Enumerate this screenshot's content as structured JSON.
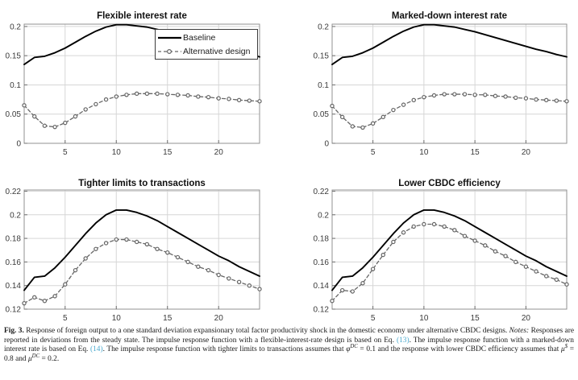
{
  "figure": {
    "caption": {
      "link_color": "#4aa9ce",
      "segments": [
        {
          "text": "Fig. 3.",
          "bold": true
        },
        {
          "text": " Response of foreign output to a one standard deviation expansionary total factor productivity shock in the domestic economy under alternative CBDC designs. "
        },
        {
          "text": "Notes:",
          "italic": true
        },
        {
          "text": " Responses are reported in deviations from the steady state. The impulse response function with a flexible-interest-rate design is based on Eq. "
        },
        {
          "text": "(13)",
          "link": true,
          "name": "eq-13-link"
        },
        {
          "text": ". The impulse response function with a marked-down interest rate is based on Eq. "
        },
        {
          "text": "(14)",
          "link": true,
          "name": "eq-14-link"
        },
        {
          "text": ". The impulse response function with tighter limits to transactions assumes that "
        },
        {
          "text": "φ",
          "italic": true
        },
        {
          "text": "DC",
          "italic": true,
          "sup": true
        },
        {
          "text": " = 0.1 and the response with lower CBDC efficiency assumes that "
        },
        {
          "text": "μ",
          "italic": true
        },
        {
          "text": "$",
          "italic": true,
          "sup": true
        },
        {
          "text": " = 0.8 and "
        },
        {
          "text": "μ",
          "italic": true
        },
        {
          "text": "DC",
          "italic": true,
          "sup": true
        },
        {
          "text": " = 0.2."
        }
      ]
    }
  },
  "chart_data": [
    {
      "type": "line",
      "title": "Flexible interest rate",
      "xlabel": "",
      "ylabel": "",
      "x": [
        1,
        2,
        3,
        4,
        5,
        6,
        7,
        8,
        9,
        10,
        11,
        12,
        13,
        14,
        15,
        16,
        17,
        18,
        19,
        20,
        21,
        22,
        23,
        24
      ],
      "xlim": [
        1,
        24
      ],
      "ylim": [
        0,
        0.204
      ],
      "xticks": [
        5,
        10,
        15,
        20
      ],
      "yticks": [
        0,
        0.05,
        0.1,
        0.15,
        0.2
      ],
      "ytick_labels": [
        "0",
        "0.05",
        "0.1",
        "0.15",
        "0.2"
      ],
      "grid": true,
      "legend_position": "northeast",
      "series": [
        {
          "name": "Baseline",
          "line": "solid",
          "marker": "none",
          "color": "#000000",
          "width": 1.9,
          "values": [
            0.135,
            0.147,
            0.149,
            0.155,
            0.163,
            0.173,
            0.183,
            0.192,
            0.199,
            0.203,
            0.203,
            0.201,
            0.199,
            0.195,
            0.191,
            0.186,
            0.181,
            0.176,
            0.171,
            0.166,
            0.161,
            0.157,
            0.152,
            0.148
          ]
        },
        {
          "name": "Alternative design",
          "line": "dashed",
          "marker": "circle",
          "color": "#666666",
          "width": 1.3,
          "values": [
            0.065,
            0.046,
            0.03,
            0.028,
            0.035,
            0.046,
            0.058,
            0.067,
            0.075,
            0.08,
            0.083,
            0.085,
            0.085,
            0.085,
            0.084,
            0.083,
            0.082,
            0.08,
            0.079,
            0.077,
            0.076,
            0.074,
            0.073,
            0.072
          ]
        }
      ]
    },
    {
      "type": "line",
      "title": "Marked-down interest rate",
      "xlabel": "",
      "ylabel": "",
      "x": [
        1,
        2,
        3,
        4,
        5,
        6,
        7,
        8,
        9,
        10,
        11,
        12,
        13,
        14,
        15,
        16,
        17,
        18,
        19,
        20,
        21,
        22,
        23,
        24
      ],
      "xlim": [
        1,
        24
      ],
      "ylim": [
        0,
        0.204
      ],
      "xticks": [
        5,
        10,
        15,
        20
      ],
      "yticks": [
        0,
        0.05,
        0.1,
        0.15,
        0.2
      ],
      "ytick_labels": [
        "0",
        "0.05",
        "0.1",
        "0.15",
        "0.2"
      ],
      "grid": true,
      "legend_position": "none",
      "series": [
        {
          "name": "Baseline",
          "line": "solid",
          "marker": "none",
          "color": "#000000",
          "width": 1.9,
          "values": [
            0.135,
            0.147,
            0.149,
            0.155,
            0.163,
            0.173,
            0.183,
            0.192,
            0.199,
            0.203,
            0.203,
            0.201,
            0.199,
            0.195,
            0.191,
            0.186,
            0.181,
            0.176,
            0.171,
            0.166,
            0.161,
            0.157,
            0.152,
            0.148
          ]
        },
        {
          "name": "Alternative design",
          "line": "dashed",
          "marker": "circle",
          "color": "#666666",
          "width": 1.3,
          "values": [
            0.064,
            0.045,
            0.029,
            0.027,
            0.034,
            0.045,
            0.057,
            0.066,
            0.074,
            0.079,
            0.082,
            0.084,
            0.084,
            0.084,
            0.083,
            0.083,
            0.081,
            0.08,
            0.078,
            0.077,
            0.075,
            0.074,
            0.073,
            0.072
          ]
        }
      ]
    },
    {
      "type": "line",
      "title": "Tighter limits to transactions",
      "xlabel": "",
      "ylabel": "",
      "x": [
        1,
        2,
        3,
        4,
        5,
        6,
        7,
        8,
        9,
        10,
        11,
        12,
        13,
        14,
        15,
        16,
        17,
        18,
        19,
        20,
        21,
        22,
        23,
        24
      ],
      "xlim": [
        1,
        24
      ],
      "ylim": [
        0.12,
        0.221
      ],
      "xticks": [
        5,
        10,
        15,
        20
      ],
      "yticks": [
        0.12,
        0.14,
        0.16,
        0.18,
        0.2,
        0.22
      ],
      "ytick_labels": [
        "0.12",
        "0.14",
        "0.16",
        "0.18",
        "0.2",
        "0.22"
      ],
      "grid": true,
      "legend_position": "none",
      "series": [
        {
          "name": "Baseline",
          "line": "solid",
          "marker": "none",
          "color": "#000000",
          "width": 1.9,
          "values": [
            0.136,
            0.147,
            0.148,
            0.155,
            0.164,
            0.174,
            0.184,
            0.193,
            0.2,
            0.204,
            0.204,
            0.202,
            0.199,
            0.195,
            0.19,
            0.185,
            0.18,
            0.175,
            0.17,
            0.165,
            0.161,
            0.156,
            0.152,
            0.148
          ]
        },
        {
          "name": "Alternative design",
          "line": "dashed",
          "marker": "circle",
          "color": "#666666",
          "width": 1.3,
          "values": [
            0.125,
            0.13,
            0.127,
            0.131,
            0.141,
            0.153,
            0.163,
            0.171,
            0.176,
            0.179,
            0.179,
            0.177,
            0.175,
            0.171,
            0.168,
            0.164,
            0.16,
            0.156,
            0.153,
            0.149,
            0.146,
            0.143,
            0.14,
            0.137
          ]
        }
      ]
    },
    {
      "type": "line",
      "title": "Lower CBDC efficiency",
      "xlabel": "",
      "ylabel": "",
      "x": [
        1,
        2,
        3,
        4,
        5,
        6,
        7,
        8,
        9,
        10,
        11,
        12,
        13,
        14,
        15,
        16,
        17,
        18,
        19,
        20,
        21,
        22,
        23,
        24
      ],
      "xlim": [
        1,
        24
      ],
      "ylim": [
        0.12,
        0.221
      ],
      "xticks": [
        5,
        10,
        15,
        20
      ],
      "yticks": [
        0.12,
        0.14,
        0.16,
        0.18,
        0.2,
        0.22
      ],
      "ytick_labels": [
        "0.12",
        "0.14",
        "0.16",
        "0.18",
        "0.2",
        "0.22"
      ],
      "grid": true,
      "legend_position": "none",
      "series": [
        {
          "name": "Baseline",
          "line": "solid",
          "marker": "none",
          "color": "#000000",
          "width": 1.9,
          "values": [
            0.136,
            0.147,
            0.148,
            0.155,
            0.164,
            0.174,
            0.184,
            0.193,
            0.2,
            0.204,
            0.204,
            0.202,
            0.199,
            0.195,
            0.19,
            0.185,
            0.18,
            0.175,
            0.17,
            0.165,
            0.161,
            0.156,
            0.152,
            0.148
          ]
        },
        {
          "name": "Alternative design",
          "line": "dashed",
          "marker": "circle",
          "color": "#666666",
          "width": 1.3,
          "values": [
            0.127,
            0.136,
            0.135,
            0.142,
            0.154,
            0.166,
            0.177,
            0.185,
            0.19,
            0.192,
            0.192,
            0.19,
            0.187,
            0.182,
            0.178,
            0.174,
            0.169,
            0.165,
            0.16,
            0.156,
            0.152,
            0.148,
            0.145,
            0.141
          ]
        }
      ]
    }
  ]
}
